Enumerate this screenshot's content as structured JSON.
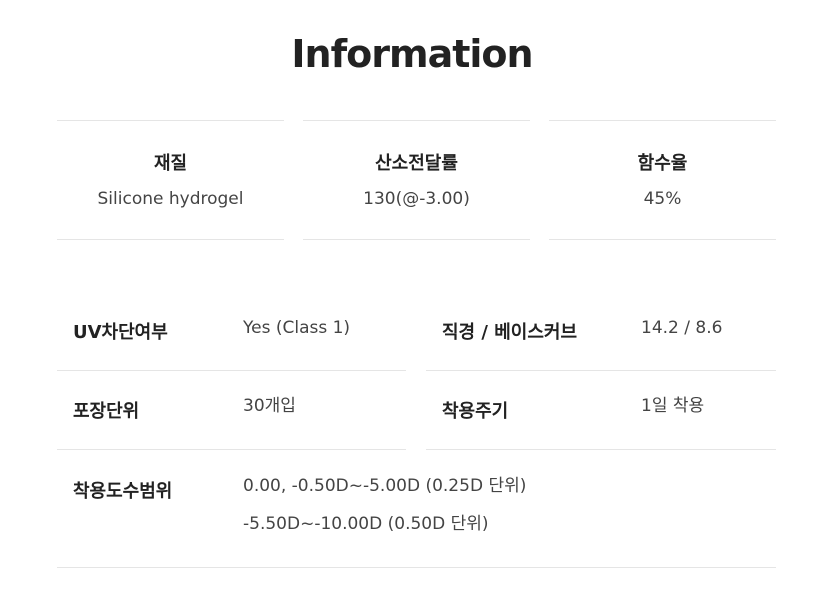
{
  "title": "Information",
  "cards": [
    {
      "label": "재질",
      "value": "Silicone hydrogel"
    },
    {
      "label": "산소전달률",
      "value": "130(@-3.00)"
    },
    {
      "label": "함수율",
      "value": "45%"
    }
  ],
  "specs": {
    "uv": {
      "label": "UV차단여부",
      "value": "Yes (Class 1)"
    },
    "diameter": {
      "label": "직경 / 베이스커브",
      "value": "14.2 / 8.6"
    },
    "package": {
      "label": "포장단위",
      "value": "30개입"
    },
    "cycle": {
      "label": "착용주기",
      "value": "1일 착용"
    },
    "power": {
      "label": "착용도수범위",
      "value": [
        "0.00, -0.50D~-5.00D (0.25D 단위)",
        "-5.50D~-10.00D (0.50D 단위)"
      ]
    }
  }
}
